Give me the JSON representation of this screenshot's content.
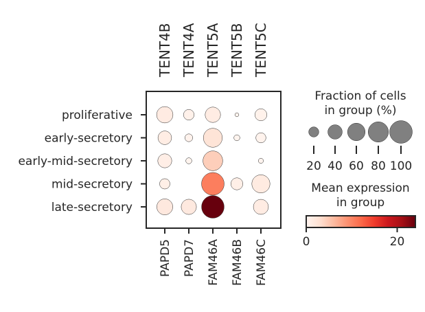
{
  "chart_data": {
    "type": "dotplot",
    "rows": [
      "proliferative",
      "early-secretory",
      "early-mid-secretory",
      "mid-secretory",
      "late-secretory"
    ],
    "columns": [
      "PAPD5",
      "PAPD7",
      "FAM46A",
      "FAM46B",
      "FAM46C"
    ],
    "top_labels": [
      "TENT4B",
      "TENT4A",
      "TENT5A",
      "TENT5B",
      "TENT5C"
    ],
    "fraction_percent": [
      [
        52,
        22,
        46,
        3,
        28
      ],
      [
        36,
        12,
        70,
        7,
        20
      ],
      [
        38,
        7,
        76,
        0,
        5
      ],
      [
        21,
        0,
        100,
        28,
        64
      ],
      [
        50,
        45,
        99,
        0,
        44
      ]
    ],
    "mean_expression": [
      [
        1.4,
        0.6,
        1.3,
        0.2,
        0.5
      ],
      [
        1.2,
        0.4,
        2.5,
        0.2,
        0.3
      ],
      [
        1.0,
        0.2,
        4.5,
        0.0,
        0.1
      ],
      [
        0.9,
        0.0,
        10.5,
        0.9,
        1.5
      ],
      [
        1.8,
        1.7,
        24.0,
        0.0,
        1.3
      ]
    ],
    "size_legend": {
      "title_line1": "Fraction of cells",
      "title_line2": "in group (%)",
      "values": [
        20,
        40,
        60,
        80,
        100
      ],
      "tick_labels": [
        "20",
        "40",
        "60",
        "80",
        "100"
      ]
    },
    "color_legend": {
      "title_line1": "Mean expression",
      "title_line2": "in group",
      "range": [
        0,
        24
      ],
      "tick_values": [
        0,
        20
      ],
      "tick_labels": [
        "0",
        "20"
      ],
      "colormap": "Reds"
    },
    "colors": {
      "frame": "#262626",
      "dot_edge": "#262626",
      "size_legend_fill": "#808080",
      "reds": [
        "#fff5f0",
        "#fee0d2",
        "#fcbba1",
        "#fc9272",
        "#fb6a4a",
        "#ef3b2c",
        "#cb181d",
        "#a50f15",
        "#67000d"
      ]
    }
  }
}
